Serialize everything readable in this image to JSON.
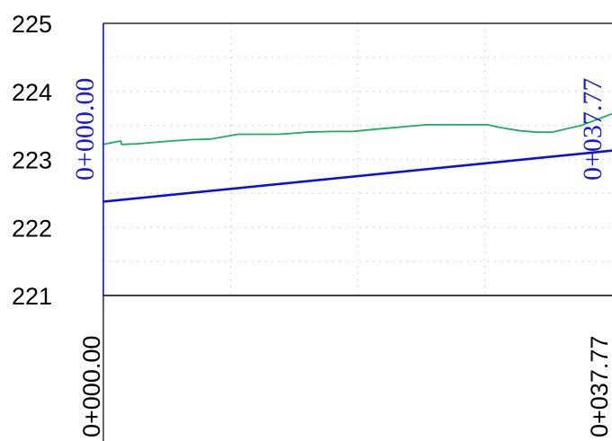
{
  "chart_data": {
    "type": "line",
    "title": "",
    "xlabel": "",
    "ylabel": "",
    "xlim": [
      0,
      37.77
    ],
    "ylim": [
      221,
      225
    ],
    "y_ticks": [
      {
        "value": 221,
        "label": "221"
      },
      {
        "value": 222,
        "label": "222"
      },
      {
        "value": 223,
        "label": "223"
      },
      {
        "value": 224,
        "label": "224"
      },
      {
        "value": 225,
        "label": "225"
      }
    ],
    "x_ticks": [
      {
        "value": 0,
        "label": "0+000.00"
      },
      {
        "value": 37.77,
        "label": "0+037.77"
      }
    ],
    "grid": true,
    "series": [
      {
        "color": "#1aae62",
        "x": [
          0,
          1.0,
          1.3,
          1.35,
          2.5,
          5.0,
          6.5,
          8.0,
          10.0,
          13.0,
          14.5,
          15.0,
          17.0,
          18.5,
          20.0,
          24.0,
          28.5,
          29.2,
          30.0,
          31.0,
          32.2,
          33.3,
          35.5,
          37.77
        ],
        "y": [
          223.22,
          223.26,
          223.27,
          223.22,
          223.23,
          223.27,
          223.29,
          223.3,
          223.37,
          223.37,
          223.39,
          223.4,
          223.41,
          223.41,
          223.44,
          223.51,
          223.51,
          223.48,
          223.45,
          223.42,
          223.4,
          223.4,
          223.5,
          223.67
        ]
      },
      {
        "color": "#0b12d8",
        "x": [
          0,
          37.77
        ],
        "y": [
          222.38,
          223.13
        ]
      }
    ],
    "annotations": [
      {
        "text": "0+000.00",
        "x": 0,
        "color": "#1a1adc"
      },
      {
        "text": "0+037.77",
        "x": 37.77,
        "color": "#1a1adc"
      }
    ]
  }
}
